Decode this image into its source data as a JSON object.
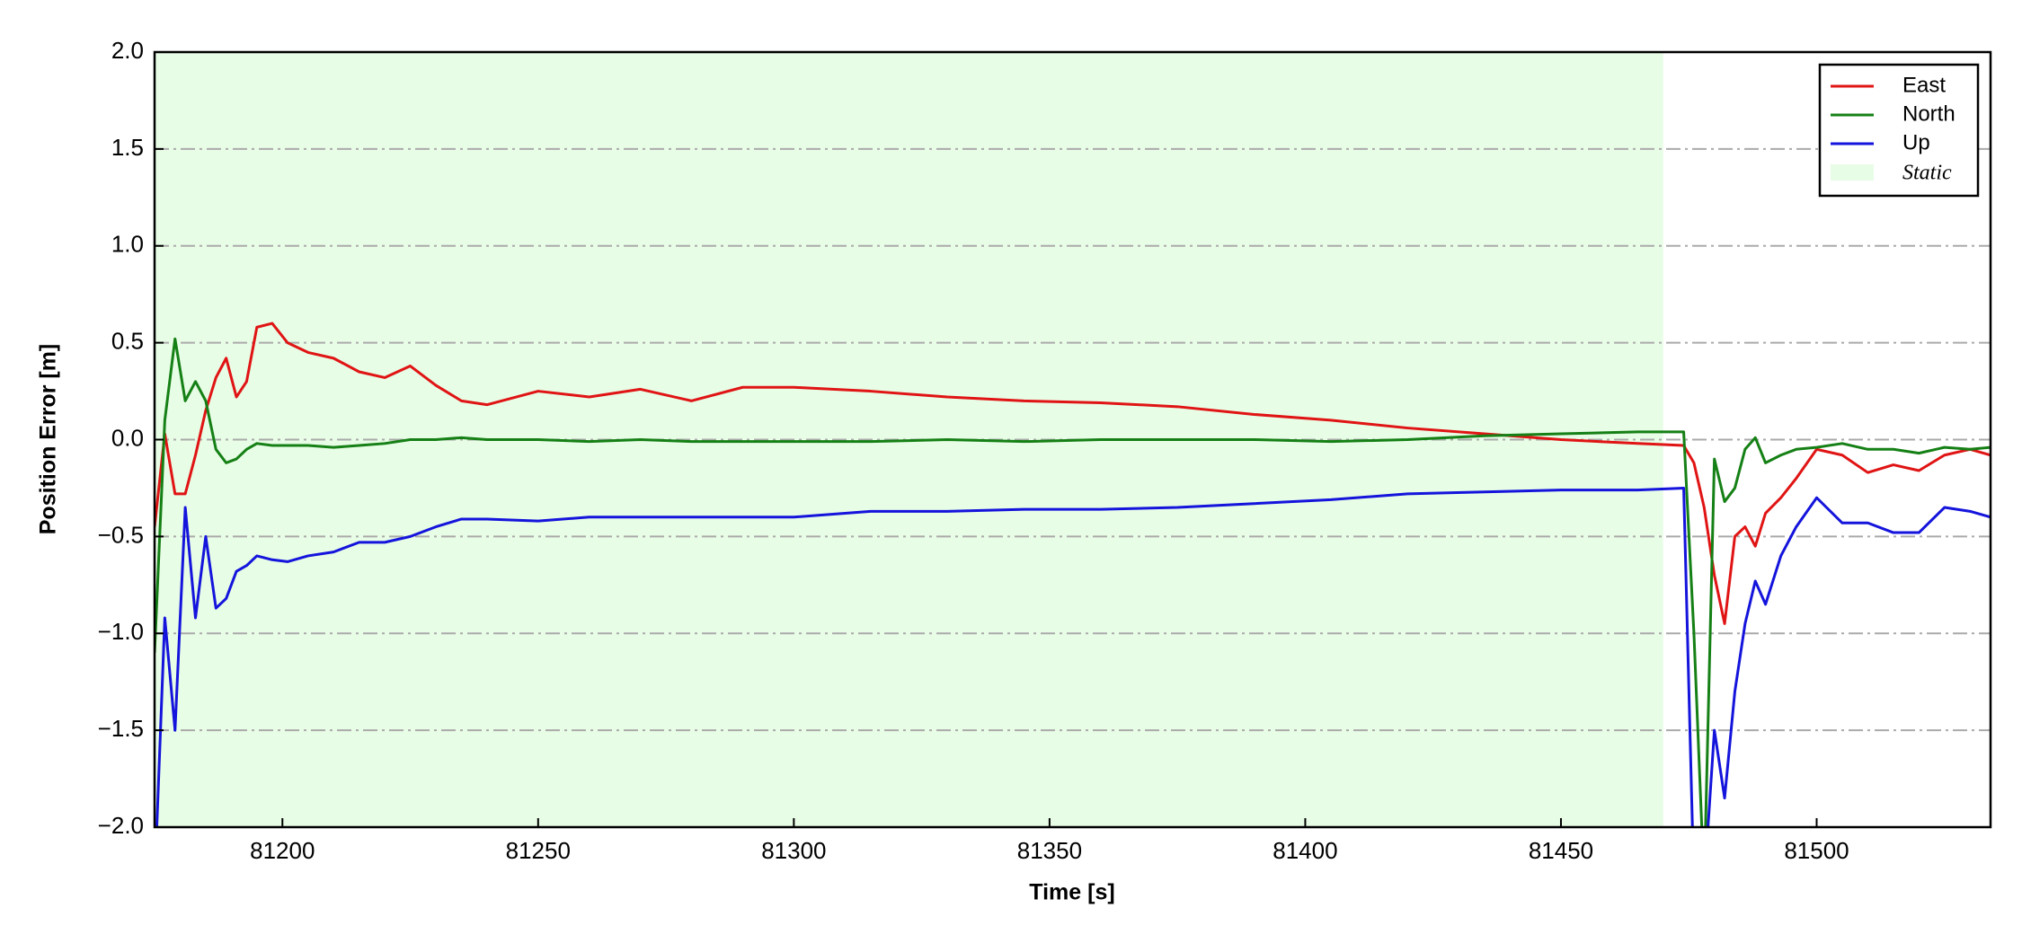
{
  "chart_data": {
    "type": "line",
    "xlabel": "Time [s]",
    "ylabel": "Position Error [m]",
    "xlim": [
      81175,
      81534
    ],
    "ylim": [
      -2.0,
      2.0
    ],
    "xticks": [
      81200,
      81250,
      81300,
      81350,
      81400,
      81450,
      81500
    ],
    "yticks": [
      {
        "value": -2.0,
        "label": "−2.0"
      },
      {
        "value": -1.5,
        "label": "−1.5"
      },
      {
        "value": -1.0,
        "label": "−1.0"
      },
      {
        "value": -0.5,
        "label": "−0.5"
      },
      {
        "value": 0.0,
        "label": "0.0"
      },
      0.5,
      {
        "value": 1.0,
        "label": "1.0"
      },
      1.5,
      {
        "value": 2.0,
        "label": "2.0"
      }
    ],
    "grid": true,
    "legend": "upper right",
    "shaded_region": {
      "name": "Static",
      "start": 81175,
      "end": 81470,
      "color": "#e8fde6"
    },
    "x": [
      81175,
      81177,
      81179,
      81181,
      81183,
      81185,
      81187,
      81189,
      81191,
      81193,
      81195,
      81198,
      81201,
      81205,
      81210,
      81215,
      81220,
      81225,
      81230,
      81235,
      81240,
      81250,
      81260,
      81270,
      81280,
      81290,
      81300,
      81315,
      81330,
      81345,
      81360,
      81375,
      81390,
      81405,
      81420,
      81435,
      81450,
      81465,
      81474,
      81476,
      81478,
      81480,
      81482,
      81484,
      81486,
      81488,
      81490,
      81493,
      81496,
      81500,
      81505,
      81510,
      81515,
      81520,
      81525,
      81530,
      81534
    ],
    "series": [
      {
        "name": "East",
        "color": "#e01414",
        "values": [
          -0.45,
          0.03,
          -0.28,
          -0.28,
          -0.08,
          0.15,
          0.32,
          0.42,
          0.22,
          0.3,
          0.58,
          0.6,
          0.5,
          0.45,
          0.42,
          0.35,
          0.32,
          0.38,
          0.28,
          0.2,
          0.18,
          0.25,
          0.22,
          0.26,
          0.2,
          0.27,
          0.27,
          0.25,
          0.22,
          0.2,
          0.19,
          0.17,
          0.13,
          0.1,
          0.06,
          0.03,
          0.0,
          -0.02,
          -0.03,
          -0.12,
          -0.35,
          -0.7,
          -0.95,
          -0.5,
          -0.45,
          -0.55,
          -0.38,
          -0.3,
          -0.2,
          -0.05,
          -0.08,
          -0.17,
          -0.13,
          -0.16,
          -0.08,
          -0.05,
          -0.08
        ]
      },
      {
        "name": "North",
        "color": "#158015",
        "values": [
          -1.1,
          0.1,
          0.52,
          0.2,
          0.3,
          0.2,
          -0.05,
          -0.12,
          -0.1,
          -0.05,
          -0.02,
          -0.03,
          -0.03,
          -0.03,
          -0.04,
          -0.03,
          -0.02,
          0.0,
          0.0,
          0.01,
          0.0,
          0.0,
          -0.01,
          0.0,
          -0.01,
          -0.01,
          -0.01,
          -0.01,
          0.0,
          -0.01,
          0.0,
          0.0,
          0.0,
          -0.01,
          0.0,
          0.02,
          0.03,
          0.04,
          0.04,
          -1.0,
          -2.3,
          -0.1,
          -0.32,
          -0.25,
          -0.05,
          0.01,
          -0.12,
          -0.08,
          -0.05,
          -0.04,
          -0.02,
          -0.05,
          -0.05,
          -0.07,
          -0.04,
          -0.05,
          -0.04
        ]
      },
      {
        "name": "Up",
        "color": "#1414dc",
        "values": [
          -2.3,
          -0.92,
          -1.5,
          -0.35,
          -0.92,
          -0.5,
          -0.87,
          -0.82,
          -0.68,
          -0.65,
          -0.6,
          -0.62,
          -0.63,
          -0.6,
          -0.58,
          -0.53,
          -0.53,
          -0.5,
          -0.45,
          -0.41,
          -0.41,
          -0.42,
          -0.4,
          -0.4,
          -0.4,
          -0.4,
          -0.4,
          -0.37,
          -0.37,
          -0.36,
          -0.36,
          -0.35,
          -0.33,
          -0.31,
          -0.28,
          -0.27,
          -0.26,
          -0.26,
          -0.25,
          -2.3,
          -2.3,
          -1.5,
          -1.85,
          -1.3,
          -0.95,
          -0.73,
          -0.85,
          -0.6,
          -0.45,
          -0.3,
          -0.43,
          -0.43,
          -0.48,
          -0.48,
          -0.35,
          -0.37,
          -0.4
        ]
      }
    ]
  }
}
